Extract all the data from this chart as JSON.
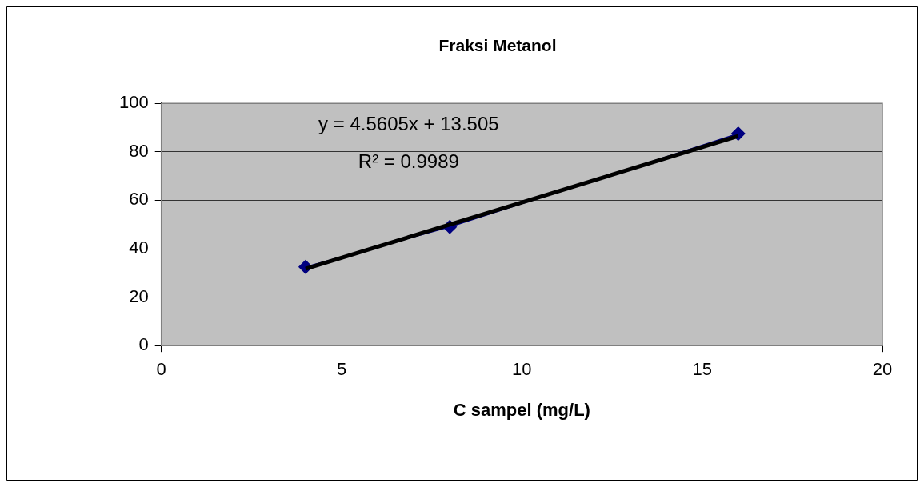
{
  "chart_data": {
    "type": "line",
    "title": "Fraksi Metanol",
    "xlabel": "C sampel (mg/L)",
    "series": [
      {
        "x": [
          4,
          8,
          16
        ],
        "values": [
          32.5,
          49,
          87.5
        ],
        "color": "#000080",
        "marker": "diamond"
      },
      {
        "x": [
          4,
          16
        ],
        "values": [
          31.7,
          86.5
        ],
        "color": "#000000",
        "marker": "none"
      }
    ],
    "xlim": [
      0,
      20
    ],
    "xticks": [
      0,
      5,
      10,
      15,
      20
    ],
    "ylim": [
      0,
      100
    ],
    "yticks": [
      0,
      20,
      40,
      60,
      80,
      100
    ],
    "grid": "y",
    "legend": false,
    "annotations": [
      "y = 4.5605x + 13.505",
      "R² = 0.9989"
    ]
  }
}
